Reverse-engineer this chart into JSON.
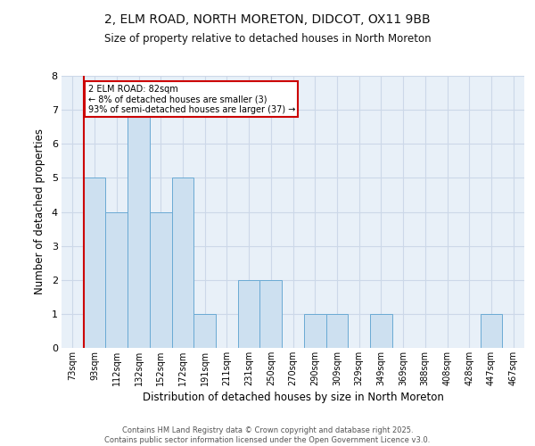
{
  "title_line1": "2, ELM ROAD, NORTH MORETON, DIDCOT, OX11 9BB",
  "title_line2": "Size of property relative to detached houses in North Moreton",
  "xlabel": "Distribution of detached houses by size in North Moreton",
  "ylabel": "Number of detached properties",
  "bin_labels": [
    "73sqm",
    "93sqm",
    "112sqm",
    "132sqm",
    "152sqm",
    "172sqm",
    "191sqm",
    "211sqm",
    "231sqm",
    "250sqm",
    "270sqm",
    "290sqm",
    "309sqm",
    "329sqm",
    "349sqm",
    "369sqm",
    "388sqm",
    "408sqm",
    "428sqm",
    "447sqm",
    "467sqm"
  ],
  "counts": [
    0,
    5,
    4,
    7,
    4,
    5,
    1,
    0,
    2,
    2,
    0,
    1,
    1,
    0,
    1,
    0,
    0,
    0,
    0,
    1,
    0
  ],
  "bar_color": "#cde0f0",
  "bar_edge_color": "#6aaad4",
  "grid_color": "#ccd8e8",
  "background_color": "#e8f0f8",
  "red_line_x": 0.5,
  "annotation_text": "2 ELM ROAD: 82sqm\n← 8% of detached houses are smaller (3)\n93% of semi-detached houses are larger (37) →",
  "annotation_box_color": "#ffffff",
  "annotation_box_edge": "#cc0000",
  "footer_text": "Contains HM Land Registry data © Crown copyright and database right 2025.\nContains public sector information licensed under the Open Government Licence v3.0.",
  "ylim": [
    0,
    8
  ],
  "yticks": [
    0,
    1,
    2,
    3,
    4,
    5,
    6,
    7,
    8
  ]
}
